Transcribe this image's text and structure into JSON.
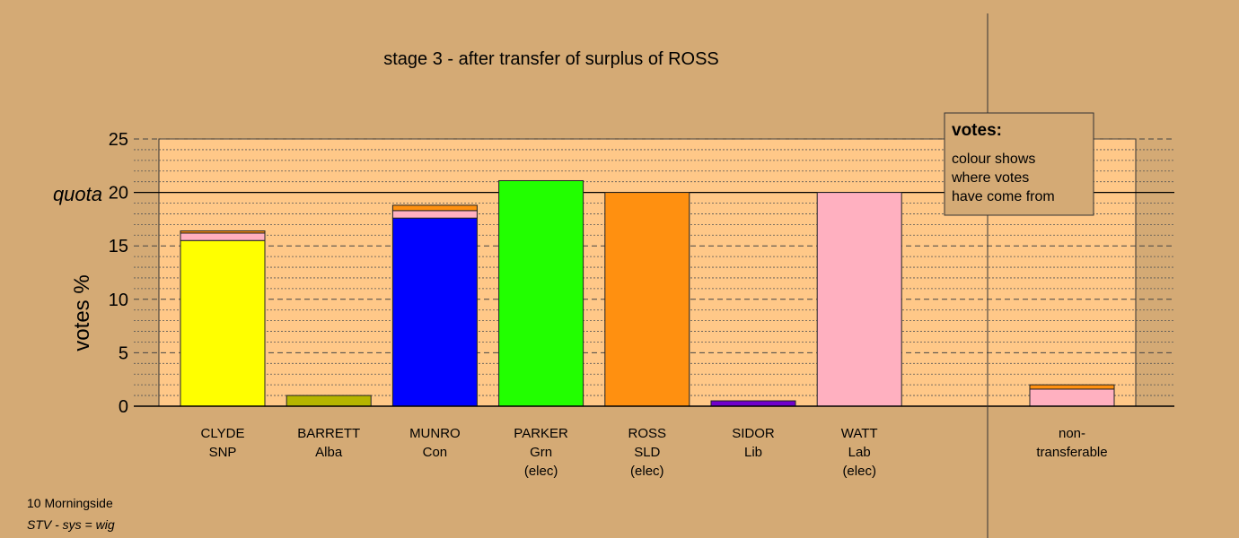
{
  "footer": {
    "district": "10 Morningside",
    "system": "STV - sys = wig"
  },
  "legend": {
    "title": "votes:",
    "lines": [
      "colour shows",
      "where votes",
      "have come from"
    ]
  },
  "chart_data": {
    "type": "bar",
    "stacked": true,
    "title": "stage 3 - after transfer of surplus of ROSS",
    "ylabel": "votes %",
    "ylim": [
      0,
      25
    ],
    "yticks": [
      {
        "value": 0,
        "label": "0"
      },
      {
        "value": 5,
        "label": "5"
      },
      {
        "value": 10,
        "label": "10"
      },
      {
        "value": 15,
        "label": "15"
      },
      {
        "value": 20,
        "label": "20"
      },
      {
        "value": 25,
        "label": "25"
      }
    ],
    "quota": {
      "value": 20,
      "label": "quota"
    },
    "grid": true,
    "colors": {
      "SNP": "#ffff00",
      "Alba": "#b5b500",
      "Con": "#0000ff",
      "Grn": "#22ff00",
      "SLD": "#ff9010",
      "Lib": "#7000cc",
      "Lab": "#ffb0c0",
      "background": "#d4aa75",
      "plot_band": "#ffc888"
    },
    "candidates": [
      {
        "name": "CLYDE",
        "party": "SNP",
        "status": "",
        "segments": [
          {
            "party": "SNP",
            "value": 15.5
          },
          {
            "party": "Lab",
            "value": 0.7
          },
          {
            "party": "SLD",
            "value": 0.2
          }
        ]
      },
      {
        "name": "BARRETT",
        "party": "Alba",
        "status": "",
        "segments": [
          {
            "party": "Alba",
            "value": 1.0
          }
        ]
      },
      {
        "name": "MUNRO",
        "party": "Con",
        "status": "",
        "segments": [
          {
            "party": "Con",
            "value": 17.6
          },
          {
            "party": "Lab",
            "value": 0.7
          },
          {
            "party": "SLD",
            "value": 0.5
          }
        ]
      },
      {
        "name": "PARKER",
        "party": "Grn",
        "status": "(elec)",
        "segments": [
          {
            "party": "Grn",
            "value": 21.1
          }
        ]
      },
      {
        "name": "ROSS",
        "party": "SLD",
        "status": "(elec)",
        "segments": [
          {
            "party": "SLD",
            "value": 20.0
          }
        ]
      },
      {
        "name": "SIDOR",
        "party": "Lib",
        "status": "",
        "segments": [
          {
            "party": "Lib",
            "value": 0.5
          }
        ]
      },
      {
        "name": "WATT",
        "party": "Lab",
        "status": "(elec)",
        "segments": [
          {
            "party": "Lab",
            "value": 20.0
          }
        ]
      }
    ],
    "nontransferable": {
      "label_lines": [
        "non-",
        "transferable"
      ],
      "segments": [
        {
          "party": "Lab",
          "value": 1.6
        },
        {
          "party": "SLD",
          "value": 0.4
        }
      ]
    }
  }
}
